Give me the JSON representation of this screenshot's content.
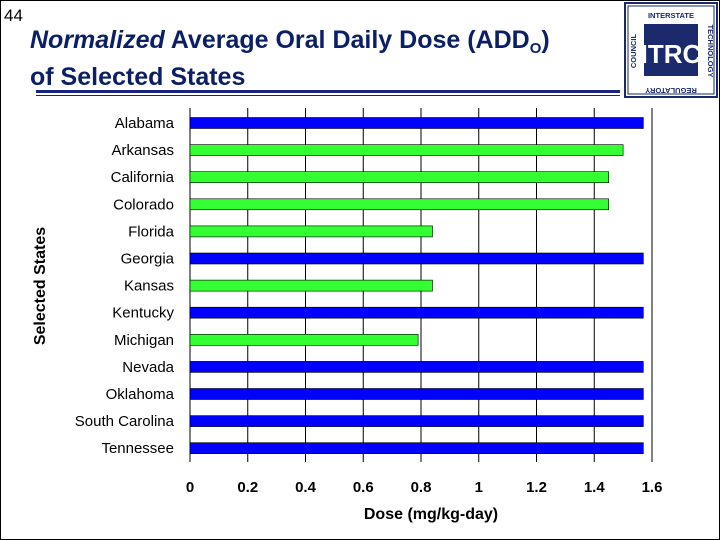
{
  "slide": {
    "number": "44"
  },
  "title": {
    "italic_part": "Normalized",
    "line1_rest": " Average Oral Daily Dose (ADD",
    "subscript": "O",
    "line1_close": ")",
    "line2": "of Selected States"
  },
  "logo": {
    "center_text": "ITRC",
    "top_text": "INTERSTATE",
    "right_text": "TECHNOLOGY",
    "bottom_text": "REGULATORY",
    "left_text": "COUNCIL",
    "colors": {
      "navy": "#1a2a6c",
      "light": "#ffffff"
    }
  },
  "colors": {
    "blue": "#0000ff",
    "green": "#33ff33",
    "title": "#0b1f66",
    "rule": "#1a237e"
  },
  "chart_data": {
    "type": "bar",
    "orientation": "horizontal",
    "categories": [
      "Alabama",
      "Arkansas",
      "California",
      "Colorado",
      "Florida",
      "Georgia",
      "Kansas",
      "Kentucky",
      "Michigan",
      "Nevada",
      "Oklahoma",
      "South Carolina",
      "Tennessee"
    ],
    "values": [
      1.57,
      1.5,
      1.45,
      1.45,
      0.84,
      1.57,
      0.84,
      1.57,
      0.79,
      1.57,
      1.57,
      1.57,
      1.57
    ],
    "bar_colors": [
      "blue",
      "green",
      "green",
      "green",
      "green",
      "blue",
      "green",
      "blue",
      "green",
      "blue",
      "blue",
      "blue",
      "blue"
    ],
    "xlim": [
      0,
      1.6
    ],
    "xticks": [
      "0",
      "0.2",
      "0.4",
      "0.6",
      "0.8",
      "1",
      "1.2",
      "1.4",
      "1.6"
    ],
    "xlabel": "Dose (mg/kg-day)",
    "ylabel": "Selected States",
    "grid": "vertical"
  }
}
